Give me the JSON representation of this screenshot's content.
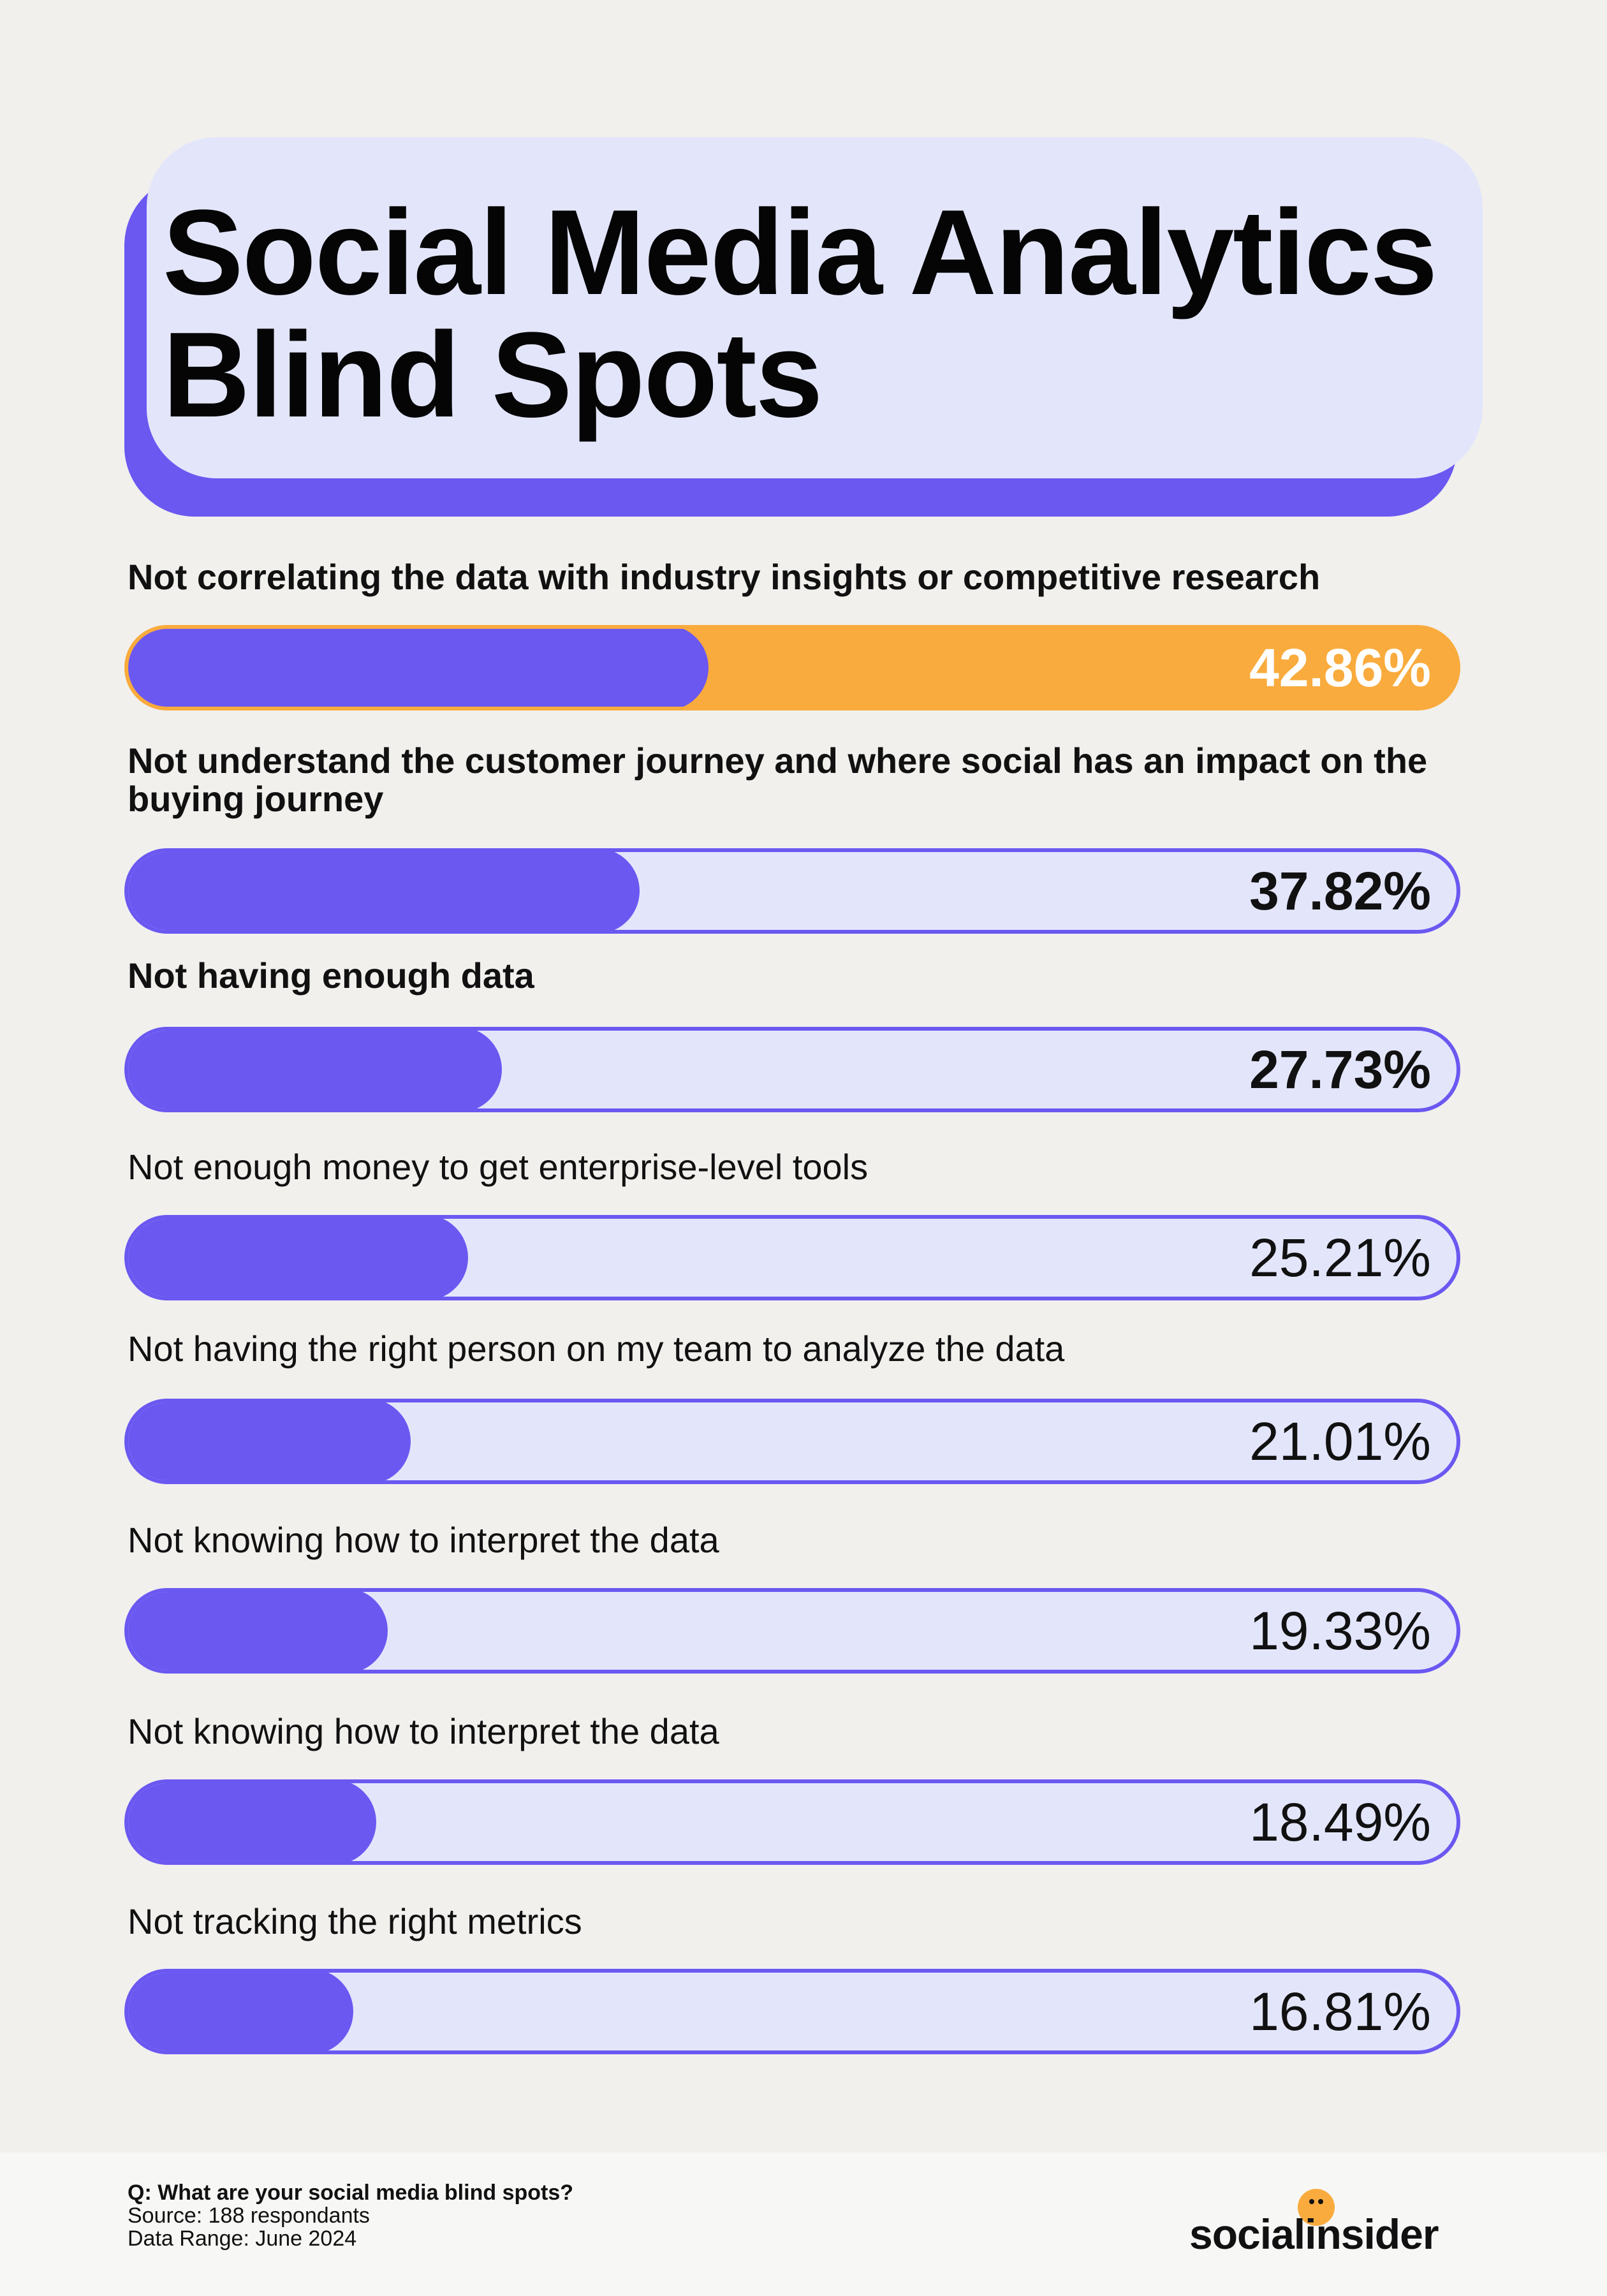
{
  "chart_data": {
    "type": "bar",
    "orientation": "horizontal",
    "title": "Social Media Analytics Blind Spots",
    "categories": [
      "Not correlating the data with industry insights or competitive research",
      "Not understand the customer journey and where social has an impact on the buying journey",
      "Not having enough data",
      "Not enough money to get enterprise-level tools",
      "Not having the right person on my team to analyze the data",
      "Not knowing how to interpret the data",
      "Not knowing how to interpret the data",
      "Not tracking the right metrics"
    ],
    "values": [
      42.86,
      37.82,
      27.73,
      25.21,
      21.01,
      19.33,
      18.49,
      16.81
    ],
    "value_labels": [
      "42.86%",
      "37.82%",
      "27.73%",
      "25.21%",
      "21.01%",
      "19.33%",
      "18.49%",
      "16.81%"
    ],
    "bold_rows": [
      0,
      1,
      2
    ],
    "highlight_row": 0,
    "xlim": [
      0,
      100
    ],
    "xlabel": "",
    "ylabel": ""
  },
  "colors": {
    "bar": "#6b58f1",
    "track": "#e3e6fb",
    "highlight": "#f9ab3d"
  },
  "footer": {
    "question": "Q: What are your social media blind spots?",
    "source": "Source: 188 respondants",
    "range": "Data Range: June 2024"
  },
  "logo": {
    "text": "socialinsider",
    "icon": "smiley-dot-icon"
  }
}
